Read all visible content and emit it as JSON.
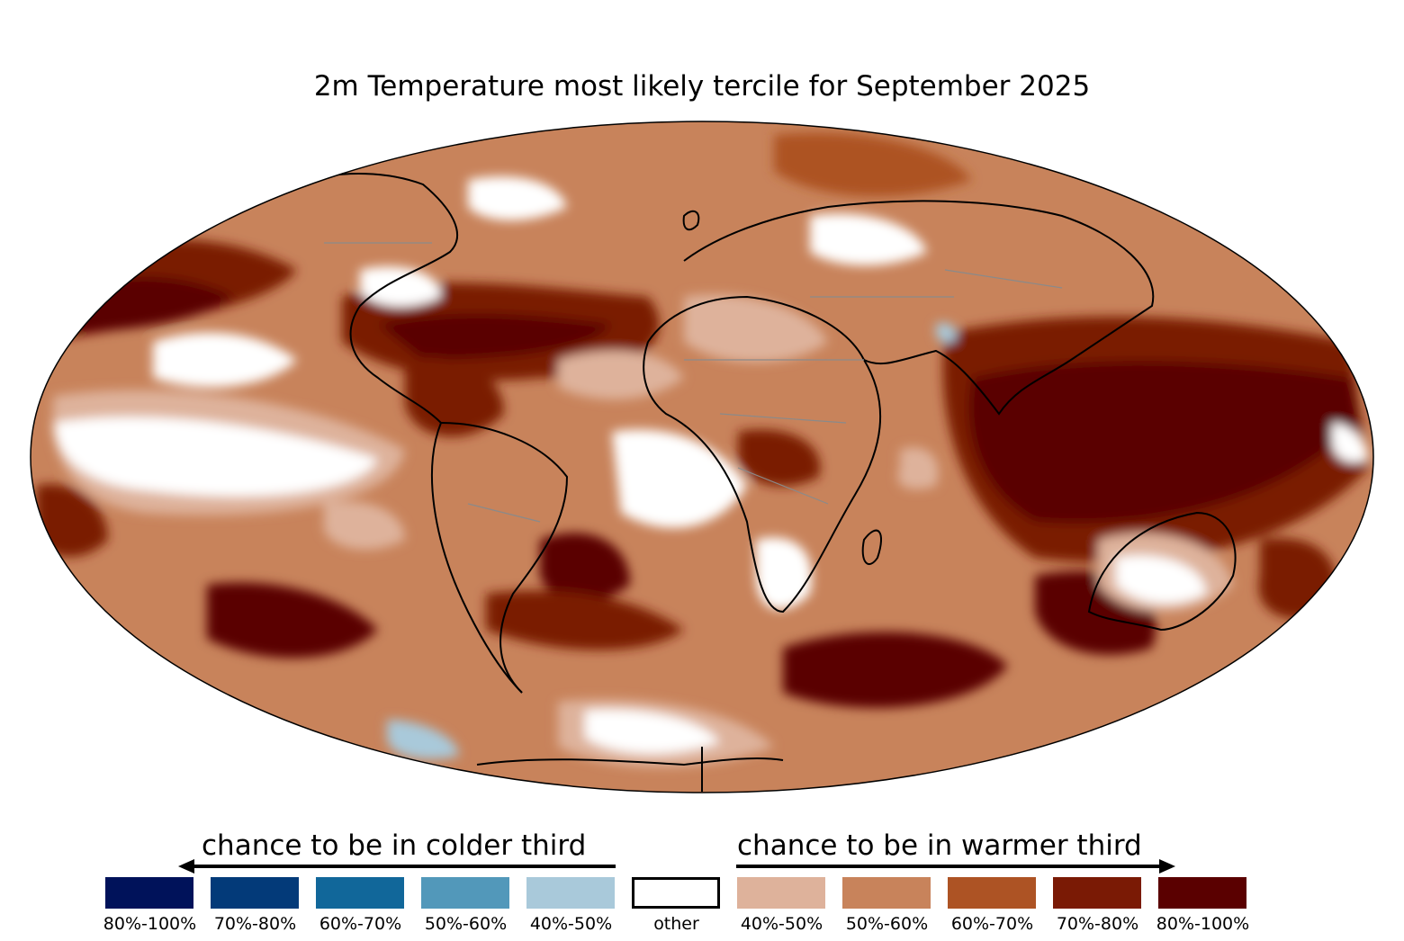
{
  "title": "2m Temperature most likely tercile for September 2025",
  "legend": {
    "colder_header": "chance to be in colder third",
    "warmer_header": "chance to be in warmer third",
    "bins": [
      {
        "label": "80%-100%",
        "color": "#00125a"
      },
      {
        "label": "70%-80%",
        "color": "#033a79"
      },
      {
        "label": "60%-70%",
        "color": "#11679a"
      },
      {
        "label": "50%-60%",
        "color": "#5298ba"
      },
      {
        "label": "40%-50%",
        "color": "#a9c9da"
      },
      {
        "label": "other",
        "color": "#ffffff"
      },
      {
        "label": "40%-50%",
        "color": "#deb29b"
      },
      {
        "label": "50%-60%",
        "color": "#c8835b"
      },
      {
        "label": "60%-70%",
        "color": "#ad5324"
      },
      {
        "label": "70%-80%",
        "color": "#7a1a05"
      },
      {
        "label": "80%-100%",
        "color": "#5a0000"
      }
    ]
  },
  "map": {
    "projection": "Mollweide",
    "field": "2m temperature most likely tercile probability",
    "dominant_color": "#c8835b",
    "ocean_base_color": "#ad5324"
  }
}
